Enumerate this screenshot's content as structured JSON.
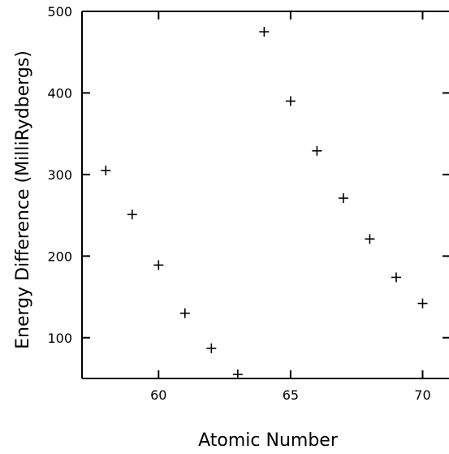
{
  "chart_data": {
    "type": "scatter",
    "title": "",
    "xlabel": "Atomic Number",
    "ylabel": "Energy Difference (MilliRydbergs)",
    "xlim": [
      57.1,
      71
    ],
    "ylim": [
      50,
      500
    ],
    "xticks": [
      60,
      65,
      70
    ],
    "yticks": [
      100,
      200,
      300,
      400,
      500
    ],
    "marker": "plus",
    "grid": false,
    "series": [
      {
        "x": [
          58,
          59,
          60,
          61,
          62,
          63,
          64,
          65,
          66,
          67,
          68,
          69,
          70
        ],
        "y": [
          305,
          251,
          189,
          130,
          87,
          55,
          475,
          390,
          329,
          271,
          221,
          174,
          142
        ]
      }
    ]
  }
}
